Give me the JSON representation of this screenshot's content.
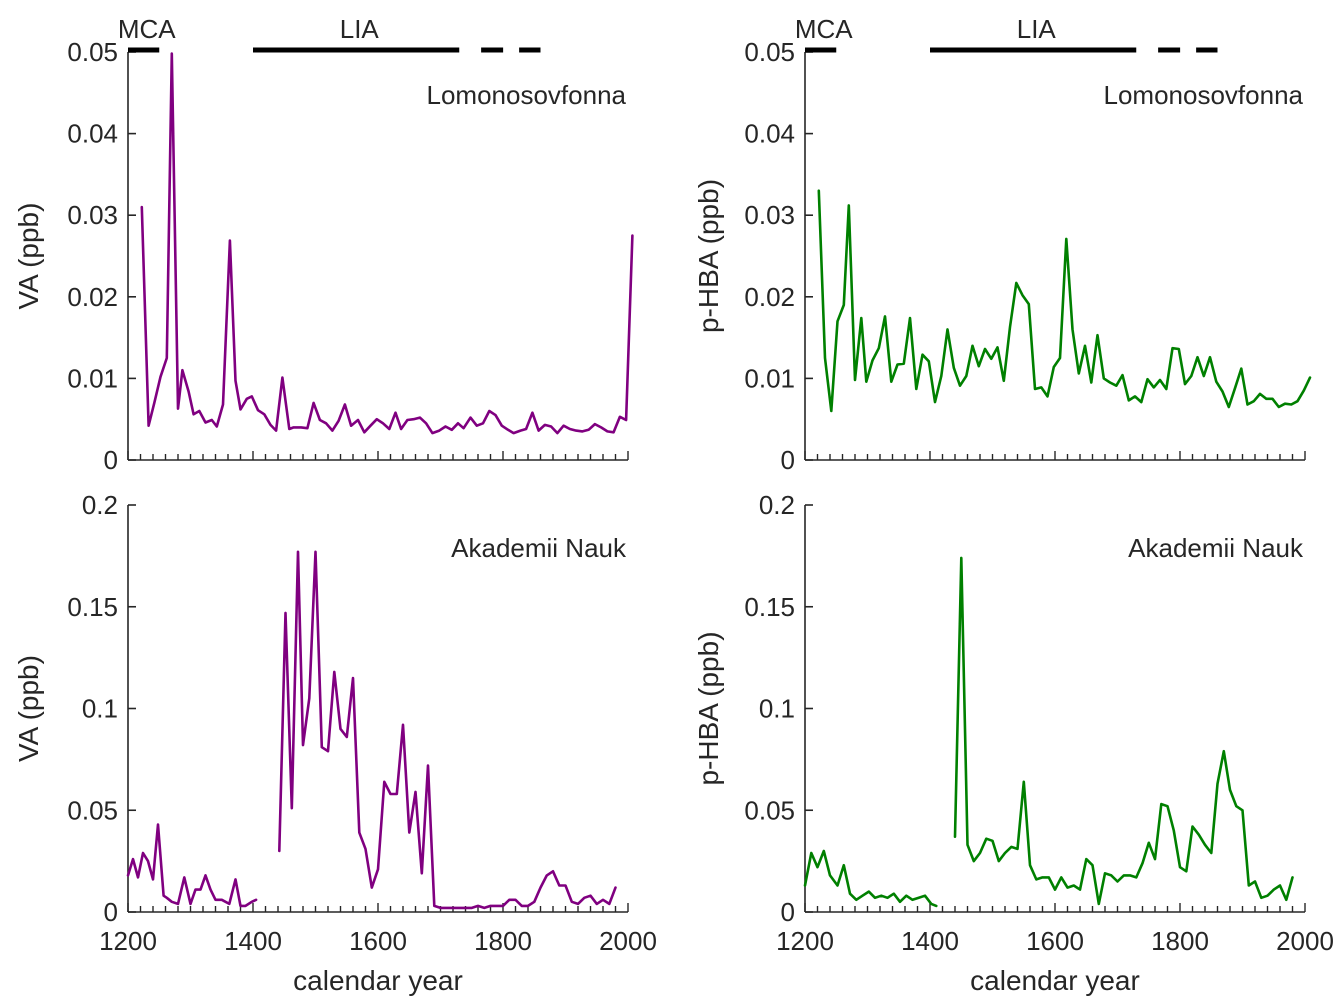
{
  "chart_data": [
    {
      "type": "line",
      "panel": "top-left",
      "title": "Lomonosovfonna",
      "ylabel": "VA (ppb)",
      "xlabel": "",
      "xlim": [
        1200,
        2000
      ],
      "ylim": [
        0,
        0.05
      ],
      "yticks": [
        "0",
        "0.01",
        "0.02",
        "0.03",
        "0.04",
        "0.05"
      ],
      "xticks": [],
      "color": "#800080",
      "period_labels": [
        "MCA",
        "LIA"
      ],
      "series": [
        {
          "x": [
            1222,
            1233,
            1242,
            1252,
            1262,
            1270,
            1280,
            1287,
            1297,
            1305,
            1314,
            1324,
            1334,
            1342,
            1352,
            1363,
            1372,
            1380,
            1390,
            1398,
            1408,
            1418,
            1428,
            1437,
            1447,
            1458,
            1465,
            1477,
            1487,
            1497,
            1507,
            1517,
            1527,
            1537,
            1547,
            1557,
            1568,
            1578,
            1588,
            1598,
            1608,
            1618,
            1628,
            1637,
            1647,
            1657,
            1667,
            1677,
            1687,
            1698,
            1708,
            1718,
            1728,
            1737,
            1748,
            1758,
            1768,
            1778,
            1788,
            1798,
            1808,
            1817,
            1828,
            1837,
            1847,
            1857,
            1867,
            1877,
            1887,
            1897,
            1907,
            1917,
            1927,
            1937,
            1947,
            1957,
            1967,
            1977,
            1987,
            1997,
            2007
          ],
          "y": [
            0.031,
            0.0042,
            0.007,
            0.0102,
            0.0125,
            0.0498,
            0.0063,
            0.011,
            0.0084,
            0.0056,
            0.006,
            0.0046,
            0.0049,
            0.0041,
            0.0068,
            0.0269,
            0.0097,
            0.0062,
            0.0075,
            0.0078,
            0.0061,
            0.0056,
            0.0043,
            0.0036,
            0.0101,
            0.0038,
            0.004,
            0.004,
            0.0039,
            0.007,
            0.0049,
            0.0045,
            0.0036,
            0.0048,
            0.0068,
            0.0042,
            0.0049,
            0.0034,
            0.0042,
            0.005,
            0.0045,
            0.0038,
            0.0058,
            0.0038,
            0.0049,
            0.005,
            0.0052,
            0.0045,
            0.0033,
            0.0036,
            0.0041,
            0.0037,
            0.0045,
            0.0039,
            0.0052,
            0.0042,
            0.0045,
            0.006,
            0.0055,
            0.0042,
            0.0037,
            0.0033,
            0.0036,
            0.0038,
            0.0058,
            0.0036,
            0.0043,
            0.0041,
            0.0033,
            0.0042,
            0.0038,
            0.0036,
            0.0035,
            0.0037,
            0.0044,
            0.004,
            0.0035,
            0.0034,
            0.0053,
            0.0049,
            0.0275
          ]
        }
      ]
    },
    {
      "type": "line",
      "panel": "bottom-left",
      "title": "Akademii Nauk",
      "ylabel": "VA (ppb)",
      "xlabel": "calendar year",
      "xlim": [
        1200,
        2000
      ],
      "ylim": [
        0,
        0.2
      ],
      "yticks": [
        "0",
        "0.05",
        "0.1",
        "0.15",
        "0.2"
      ],
      "xticks": [
        "1200",
        "1400",
        "1600",
        "1800",
        "2000"
      ],
      "color": "#800080",
      "series": [
        {
          "x": [
            1200,
            1208,
            1216,
            1224,
            1232,
            1240,
            1248,
            1257,
            1262,
            1270,
            1280,
            1290,
            1300,
            1308,
            1316,
            1324,
            1332,
            1340,
            1350,
            1362,
            1372,
            1380,
            1388,
            1398,
            1405
          ],
          "y": [
            0.018,
            0.026,
            0.017,
            0.029,
            0.025,
            0.016,
            0.043,
            0.008,
            0.007,
            0.005,
            0.004,
            0.017,
            0.004,
            0.011,
            0.011,
            0.018,
            0.011,
            0.006,
            0.006,
            0.004,
            0.016,
            0.003,
            0.003,
            0.005,
            0.006
          ]
        },
        {
          "x": [
            1442,
            1452,
            1462,
            1472,
            1480,
            1490,
            1500,
            1510,
            1520,
            1530,
            1540,
            1550,
            1560,
            1570,
            1580,
            1590,
            1600,
            1610,
            1620,
            1630,
            1640,
            1650,
            1660,
            1670,
            1680,
            1690,
            1700,
            1710,
            1720,
            1730,
            1740,
            1750,
            1760,
            1770,
            1780,
            1790,
            1800,
            1810,
            1820,
            1830,
            1840,
            1850,
            1860,
            1870,
            1880,
            1890,
            1900,
            1910,
            1920,
            1930,
            1940,
            1950,
            1960,
            1970,
            1980
          ],
          "y": [
            0.03,
            0.147,
            0.051,
            0.177,
            0.082,
            0.105,
            0.177,
            0.081,
            0.079,
            0.118,
            0.09,
            0.086,
            0.115,
            0.039,
            0.031,
            0.012,
            0.021,
            0.064,
            0.058,
            0.058,
            0.092,
            0.039,
            0.059,
            0.019,
            0.072,
            0.003,
            0.002,
            0.002,
            0.002,
            0.002,
            0.002,
            0.002,
            0.003,
            0.002,
            0.003,
            0.003,
            0.003,
            0.006,
            0.006,
            0.003,
            0.003,
            0.005,
            0.012,
            0.018,
            0.02,
            0.013,
            0.013,
            0.005,
            0.004,
            0.007,
            0.008,
            0.004,
            0.006,
            0.004,
            0.012
          ]
        }
      ]
    },
    {
      "type": "line",
      "panel": "top-right",
      "title": "Lomonosovfonna",
      "ylabel": "p-HBA (ppb)",
      "xlabel": "",
      "xlim": [
        1200,
        2000
      ],
      "ylim": [
        0,
        0.05
      ],
      "yticks": [
        "0",
        "0.01",
        "0.02",
        "0.03",
        "0.04",
        "0.05"
      ],
      "xticks": [],
      "color": "#008000",
      "period_labels": [
        "MCA",
        "LIA"
      ],
      "series": [
        {
          "x": [
            1222,
            1232,
            1242,
            1252,
            1262,
            1270,
            1280,
            1290,
            1298,
            1308,
            1318,
            1328,
            1338,
            1348,
            1358,
            1368,
            1378,
            1388,
            1398,
            1408,
            1418,
            1428,
            1438,
            1448,
            1458,
            1468,
            1478,
            1488,
            1498,
            1508,
            1518,
            1528,
            1538,
            1548,
            1558,
            1568,
            1578,
            1588,
            1598,
            1608,
            1618,
            1628,
            1638,
            1648,
            1658,
            1668,
            1678,
            1688,
            1698,
            1708,
            1718,
            1728,
            1738,
            1748,
            1758,
            1768,
            1778,
            1788,
            1798,
            1808,
            1818,
            1828,
            1838,
            1848,
            1858,
            1868,
            1878,
            1888,
            1898,
            1908,
            1918,
            1928,
            1938,
            1948,
            1958,
            1968,
            1978,
            1988,
            1998,
            2008
          ],
          "y": [
            0.033,
            0.0125,
            0.006,
            0.017,
            0.019,
            0.0312,
            0.0098,
            0.0174,
            0.0096,
            0.0122,
            0.0137,
            0.0176,
            0.0096,
            0.0117,
            0.0118,
            0.0174,
            0.0087,
            0.0129,
            0.0121,
            0.0071,
            0.0103,
            0.016,
            0.0113,
            0.0091,
            0.0103,
            0.014,
            0.0115,
            0.0136,
            0.0124,
            0.0138,
            0.0097,
            0.0163,
            0.0217,
            0.0202,
            0.0191,
            0.0087,
            0.0089,
            0.0078,
            0.0114,
            0.0125,
            0.0271,
            0.016,
            0.0106,
            0.014,
            0.0095,
            0.0153,
            0.01,
            0.0095,
            0.0091,
            0.0104,
            0.0073,
            0.0078,
            0.0071,
            0.0099,
            0.0089,
            0.0098,
            0.0087,
            0.0137,
            0.0136,
            0.0093,
            0.0103,
            0.0126,
            0.0103,
            0.0126,
            0.0096,
            0.0084,
            0.0065,
            0.0088,
            0.0112,
            0.0068,
            0.0072,
            0.0081,
            0.0075,
            0.0075,
            0.0065,
            0.0069,
            0.0068,
            0.0072,
            0.0085,
            0.0101
          ]
        }
      ]
    },
    {
      "type": "line",
      "panel": "bottom-right",
      "title": "Akademii Nauk",
      "ylabel": "p-HBA (ppb)",
      "xlabel": "calendar year",
      "xlim": [
        1200,
        2000
      ],
      "ylim": [
        0,
        0.2
      ],
      "yticks": [
        "0",
        "0.05",
        "0.1",
        "0.15",
        "0.2"
      ],
      "xticks": [
        "1200",
        "1400",
        "1600",
        "1800",
        "2000"
      ],
      "color": "#008000",
      "series": [
        {
          "x": [
            1200,
            1210,
            1220,
            1230,
            1240,
            1252,
            1262,
            1272,
            1282,
            1292,
            1302,
            1312,
            1322,
            1332,
            1342,
            1352,
            1362,
            1372,
            1382,
            1392,
            1402,
            1410
          ],
          "y": [
            0.013,
            0.029,
            0.022,
            0.03,
            0.018,
            0.013,
            0.023,
            0.009,
            0.006,
            0.008,
            0.01,
            0.007,
            0.008,
            0.007,
            0.009,
            0.005,
            0.008,
            0.006,
            0.007,
            0.008,
            0.004,
            0.003
          ]
        },
        {
          "x": [
            1440,
            1450,
            1460,
            1470,
            1480,
            1490,
            1500,
            1510,
            1520,
            1530,
            1540,
            1550,
            1560,
            1570,
            1580,
            1590,
            1600,
            1610,
            1620,
            1630,
            1640,
            1650,
            1660,
            1670,
            1680,
            1690,
            1700,
            1710,
            1720,
            1730,
            1740,
            1750,
            1760,
            1770,
            1780,
            1790,
            1800,
            1810,
            1820,
            1830,
            1840,
            1850,
            1860,
            1870,
            1880,
            1890,
            1900,
            1910,
            1920,
            1930,
            1940,
            1950,
            1960,
            1970,
            1980
          ],
          "y": [
            0.037,
            0.174,
            0.033,
            0.025,
            0.029,
            0.036,
            0.035,
            0.025,
            0.029,
            0.032,
            0.031,
            0.064,
            0.023,
            0.016,
            0.017,
            0.017,
            0.011,
            0.017,
            0.012,
            0.013,
            0.011,
            0.026,
            0.023,
            0.004,
            0.019,
            0.018,
            0.015,
            0.018,
            0.018,
            0.017,
            0.024,
            0.034,
            0.026,
            0.053,
            0.052,
            0.04,
            0.022,
            0.02,
            0.042,
            0.038,
            0.033,
            0.029,
            0.063,
            0.079,
            0.06,
            0.052,
            0.05,
            0.013,
            0.015,
            0.007,
            0.008,
            0.011,
            0.013,
            0.006,
            0.017
          ]
        }
      ]
    }
  ]
}
